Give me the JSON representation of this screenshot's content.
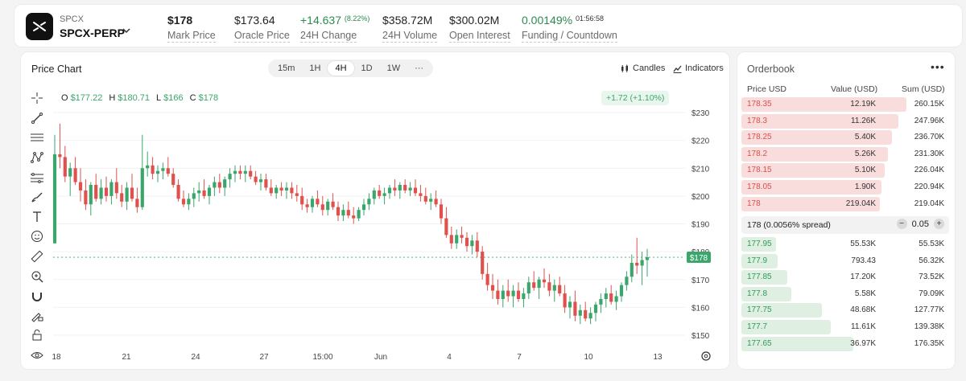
{
  "header": {
    "symbol_small": "SPCX",
    "symbol": "SPCX-PERP",
    "stats": {
      "mark_price": {
        "value": "$178",
        "label": "Mark Price"
      },
      "oracle_price": {
        "value": "$173.64",
        "label": "Oracle Price"
      },
      "change_24h": {
        "value": "+14.637",
        "pct": "(8.22%)",
        "label": "24H Change"
      },
      "volume_24h": {
        "value": "$358.72M",
        "label": "24H Volume"
      },
      "open_interest": {
        "value": "$300.02M",
        "label": "Open Interest"
      },
      "funding": {
        "value": "0.00149%",
        "countdown": "01:56:58",
        "label": "Funding / Countdown"
      }
    }
  },
  "chart_panel": {
    "title": "Price Chart",
    "timeframes": [
      "15m",
      "1H",
      "4H",
      "1D",
      "1W",
      "···"
    ],
    "active_timeframe": "4H",
    "candles_label": "Candles",
    "indicators_label": "Indicators",
    "ohlc": {
      "o_label": "O",
      "o": "$177.22",
      "h_label": "H",
      "h": "$180.71",
      "l_label": "L",
      "l": "$166",
      "c_label": "C",
      "c": "$178"
    },
    "change_badge": "+1.72 (+1.10%)",
    "last_price_tag": "$178",
    "tools": [
      "crosshair-icon",
      "trend-line-icon",
      "horizontal-lines-icon",
      "pattern-icon",
      "fib-icon",
      "brush-icon",
      "text-icon",
      "emoji-icon",
      "ruler-icon",
      "zoom-in-icon",
      "magnet-icon",
      "pencil-lock-icon",
      "lock-icon",
      "eye-icon"
    ]
  },
  "chart_data": {
    "type": "candlestick",
    "y_ticks": [
      "$230",
      "$220",
      "$210",
      "$200",
      "$190",
      "$180",
      "$170",
      "$160",
      "$150"
    ],
    "ylim": [
      147,
      233
    ],
    "x_ticks": [
      "18",
      "21",
      "24",
      "27",
      "15:00",
      "Jun",
      "4",
      "7",
      "10",
      "13"
    ],
    "last_price": 178,
    "up_color": "#3aa66b",
    "down_color": "#e0514d",
    "candles": [
      [
        183,
        222,
        183,
        215
      ],
      [
        215,
        226,
        210,
        214
      ],
      [
        214,
        218,
        205,
        207
      ],
      [
        207,
        212,
        200,
        210
      ],
      [
        210,
        214,
        204,
        205
      ],
      [
        205,
        210,
        198,
        202
      ],
      [
        202,
        206,
        195,
        197
      ],
      [
        197,
        205,
        193,
        204
      ],
      [
        204,
        208,
        198,
        199
      ],
      [
        199,
        206,
        197,
        203
      ],
      [
        203,
        207,
        198,
        200
      ],
      [
        200,
        206,
        197,
        205
      ],
      [
        205,
        210,
        199,
        201
      ],
      [
        201,
        204,
        196,
        198
      ],
      [
        198,
        205,
        195,
        203
      ],
      [
        203,
        208,
        198,
        199
      ],
      [
        199,
        203,
        194,
        196
      ],
      [
        196,
        222,
        195,
        210
      ],
      [
        210,
        216,
        207,
        211
      ],
      [
        211,
        214,
        206,
        208
      ],
      [
        208,
        211,
        205,
        209
      ],
      [
        209,
        212,
        206,
        210
      ],
      [
        210,
        214,
        207,
        208
      ],
      [
        208,
        210,
        203,
        204
      ],
      [
        204,
        206,
        198,
        199
      ],
      [
        199,
        202,
        196,
        197
      ],
      [
        197,
        201,
        195,
        199
      ],
      [
        199,
        203,
        196,
        201
      ],
      [
        201,
        205,
        198,
        202
      ],
      [
        202,
        206,
        199,
        200
      ],
      [
        200,
        204,
        197,
        203
      ],
      [
        203,
        207,
        200,
        205
      ],
      [
        205,
        208,
        201,
        203
      ],
      [
        203,
        207,
        200,
        206
      ],
      [
        206,
        210,
        203,
        208
      ],
      [
        208,
        211,
        205,
        209
      ],
      [
        209,
        211,
        206,
        208
      ],
      [
        208,
        211,
        205,
        209
      ],
      [
        209,
        211,
        206,
        207
      ],
      [
        207,
        209,
        204,
        205
      ],
      [
        205,
        208,
        202,
        206
      ],
      [
        206,
        208,
        202,
        203
      ],
      [
        203,
        206,
        200,
        201
      ],
      [
        201,
        204,
        199,
        203
      ],
      [
        203,
        205,
        200,
        202
      ],
      [
        202,
        205,
        199,
        203
      ],
      [
        203,
        205,
        199,
        201
      ],
      [
        201,
        204,
        198,
        200
      ],
      [
        200,
        203,
        195,
        197
      ],
      [
        197,
        199,
        194,
        196
      ],
      [
        196,
        200,
        194,
        199
      ],
      [
        199,
        202,
        196,
        197
      ],
      [
        197,
        200,
        193,
        195
      ],
      [
        195,
        199,
        193,
        198
      ],
      [
        198,
        201,
        195,
        196
      ],
      [
        196,
        198,
        191,
        193
      ],
      [
        193,
        197,
        191,
        195
      ],
      [
        195,
        198,
        192,
        193
      ],
      [
        193,
        196,
        190,
        192
      ],
      [
        192,
        196,
        191,
        195
      ],
      [
        195,
        199,
        193,
        197
      ],
      [
        197,
        201,
        195,
        199
      ],
      [
        199,
        203,
        197,
        202
      ],
      [
        202,
        204,
        199,
        200
      ],
      [
        200,
        203,
        197,
        201
      ],
      [
        201,
        204,
        199,
        203
      ],
      [
        203,
        206,
        200,
        202
      ],
      [
        202,
        205,
        199,
        204
      ],
      [
        204,
        206,
        201,
        202
      ],
      [
        202,
        205,
        200,
        203
      ],
      [
        203,
        206,
        200,
        201
      ],
      [
        201,
        204,
        198,
        200
      ],
      [
        200,
        203,
        197,
        198
      ],
      [
        198,
        201,
        195,
        199
      ],
      [
        199,
        202,
        196,
        197
      ],
      [
        197,
        199,
        190,
        192
      ],
      [
        192,
        196,
        185,
        186
      ],
      [
        186,
        189,
        181,
        183
      ],
      [
        183,
        188,
        181,
        186
      ],
      [
        186,
        189,
        183,
        185
      ],
      [
        185,
        187,
        180,
        182
      ],
      [
        182,
        186,
        179,
        184
      ],
      [
        184,
        187,
        178,
        180
      ],
      [
        180,
        182,
        170,
        172
      ],
      [
        172,
        176,
        166,
        168
      ],
      [
        168,
        172,
        163,
        166
      ],
      [
        166,
        170,
        161,
        163
      ],
      [
        163,
        168,
        160,
        166
      ],
      [
        166,
        170,
        162,
        164
      ],
      [
        164,
        168,
        160,
        166
      ],
      [
        166,
        169,
        162,
        163
      ],
      [
        163,
        167,
        160,
        165
      ],
      [
        165,
        171,
        163,
        169
      ],
      [
        169,
        173,
        166,
        167
      ],
      [
        167,
        171,
        163,
        170
      ],
      [
        170,
        174,
        167,
        169
      ],
      [
        169,
        172,
        164,
        166
      ],
      [
        166,
        170,
        162,
        168
      ],
      [
        168,
        171,
        164,
        165
      ],
      [
        165,
        168,
        158,
        160
      ],
      [
        160,
        164,
        156,
        162
      ],
      [
        162,
        166,
        155,
        157
      ],
      [
        157,
        161,
        154,
        159
      ],
      [
        159,
        162,
        155,
        156
      ],
      [
        156,
        160,
        154,
        158
      ],
      [
        158,
        162,
        155,
        161
      ],
      [
        161,
        165,
        158,
        163
      ],
      [
        163,
        167,
        160,
        165
      ],
      [
        165,
        168,
        161,
        162
      ],
      [
        162,
        166,
        159,
        164
      ],
      [
        164,
        169,
        162,
        168
      ],
      [
        168,
        173,
        166,
        171
      ],
      [
        171,
        179,
        169,
        176
      ],
      [
        176,
        185,
        172,
        175
      ],
      [
        175,
        180,
        168,
        177
      ],
      [
        177,
        181,
        171,
        178
      ]
    ]
  },
  "orderbook": {
    "title": "Orderbook",
    "more": "•••",
    "headers": {
      "price": "Price USD",
      "value": "Value (USD)",
      "sum": "Sum (USD)"
    },
    "asks": [
      {
        "price": "178.35",
        "value": "12.19K",
        "sum": "260.15K",
        "depth": 1.0
      },
      {
        "price": "178.3",
        "value": "11.26K",
        "sum": "247.96K",
        "depth": 0.95
      },
      {
        "price": "178.25",
        "value": "5.40K",
        "sum": "236.70K",
        "depth": 0.91
      },
      {
        "price": "178.2",
        "value": "5.26K",
        "sum": "231.30K",
        "depth": 0.89
      },
      {
        "price": "178.15",
        "value": "5.10K",
        "sum": "226.04K",
        "depth": 0.87
      },
      {
        "price": "178.05",
        "value": "1.90K",
        "sum": "220.94K",
        "depth": 0.85
      },
      {
        "price": "178",
        "value": "219.04K",
        "sum": "219.04K",
        "depth": 0.84
      }
    ],
    "spread": {
      "label": "178 (0.0056% spread)",
      "tick": "0.05",
      "minus": "−",
      "plus": "+"
    },
    "bids": [
      {
        "price": "177.95",
        "value": "55.53K",
        "sum": "55.53K",
        "depth": 0.21
      },
      {
        "price": "177.9",
        "value": "793.43",
        "sum": "56.32K",
        "depth": 0.22
      },
      {
        "price": "177.85",
        "value": "17.20K",
        "sum": "73.52K",
        "depth": 0.28
      },
      {
        "price": "177.8",
        "value": "5.58K",
        "sum": "79.09K",
        "depth": 0.3
      },
      {
        "price": "177.75",
        "value": "48.68K",
        "sum": "127.77K",
        "depth": 0.49
      },
      {
        "price": "177.7",
        "value": "11.61K",
        "sum": "139.38K",
        "depth": 0.54
      },
      {
        "price": "177.65",
        "value": "36.97K",
        "sum": "176.35K",
        "depth": 0.68
      }
    ]
  }
}
